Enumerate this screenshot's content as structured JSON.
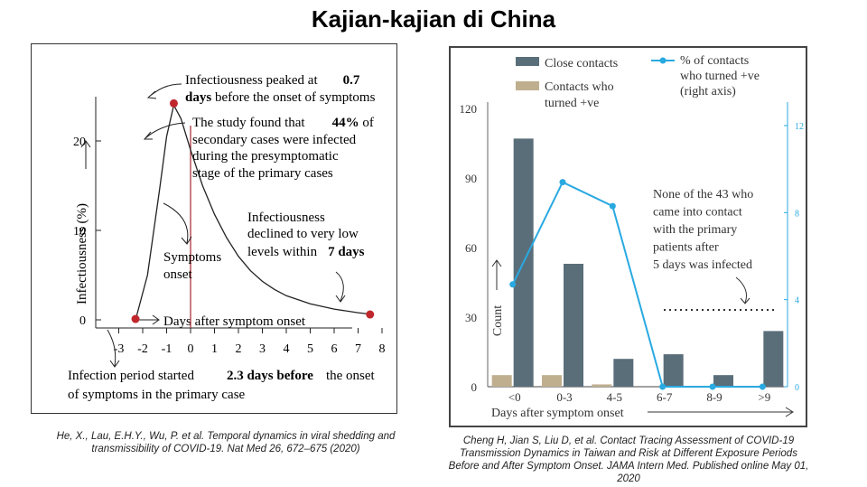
{
  "page_title": "Kajian-kajian di China",
  "left_chart": {
    "ylabel": "Infectiousness (%)",
    "xlabel": "Days after symptom onset",
    "symptoms_onset_label": [
      "Symptoms",
      "onset"
    ],
    "annotation_peak": {
      "line1": "Infectiousness peaked at",
      "bold1": "0.7",
      "bold2": "days",
      "line2": "before the onset of symptoms"
    },
    "annotation_study": {
      "line1": "The study found that",
      "bold1": "44%",
      "bold1_suffix": "of",
      "line2": "secondary cases were infected",
      "line3": "during the presymptomatic",
      "line4": "stage of the primary cases"
    },
    "annotation_decline": {
      "line1": "Infectiousness",
      "line2": "declined to very low",
      "line3": "levels within",
      "bold1": "7 days"
    },
    "annotation_start": {
      "line1": "Infection period started",
      "bold1": "2.3 days before",
      "line1_suffix": "the onset",
      "line2": "of symptoms in the primary case"
    },
    "citation": "He, X., Lau, E.H.Y., Wu, P. et al. Temporal dynamics in viral shedding and transmissibility of COVID-19. Nat Med 26, 672–675 (2020)"
  },
  "right_chart": {
    "legend": {
      "bar1": "Close contacts",
      "bar2_line1": "Contacts who",
      "bar2_line2": "turned +ve",
      "line_1": "% of contacts",
      "line_2": "who turned +ve",
      "line_3": "(right axis)"
    },
    "ylabel": "Count",
    "xlabel": "Days after symptom onset",
    "annotation": [
      "None of the 43 who",
      "came into contact",
      "with the primary",
      "patients after",
      "5 days was infected"
    ],
    "citation": "Cheng H, Jian S, Liu D, et al. Contact Tracing Assessment of COVID-19 Transmission Dynamics in Taiwan and Risk at Different Exposure Periods Before and After Symptom Onset. JAMA Intern Med. Published online May 01, 2020"
  },
  "colors": {
    "curve": "#222222",
    "marker": "#c0272d",
    "onset_line": "#a8242a",
    "bar_close": "#5a6e7a",
    "bar_positive": "#bfaf8f",
    "pct_line": "#29a9e1"
  },
  "chart_data": [
    {
      "type": "line",
      "xlabel": "Days after symptom onset",
      "ylabel": "Infectiousness (%)",
      "xlim": [
        -3.2,
        8.2
      ],
      "ylim": [
        0,
        25
      ],
      "xticks": [
        -3,
        -2,
        -1,
        0,
        1,
        2,
        3,
        4,
        5,
        6,
        7,
        8
      ],
      "yticks": [
        0,
        10,
        20
      ],
      "series": [
        {
          "x": [
            -2.3,
            -1.8,
            -1.3,
            -1.0,
            -0.7,
            -0.4,
            0,
            0.5,
            1,
            1.5,
            2,
            2.5,
            3,
            3.5,
            4,
            5,
            6,
            7,
            7.5
          ],
          "y": [
            0,
            5,
            14.5,
            20.5,
            24,
            22.5,
            19,
            15,
            11.8,
            9.2,
            7.1,
            5.5,
            4.3,
            3.4,
            2.7,
            1.8,
            1.2,
            0.8,
            0.65
          ]
        }
      ],
      "points": [
        {
          "x": -2.3,
          "y": 0.1
        },
        {
          "x": -0.7,
          "y": 24.2
        },
        {
          "x": 7.5,
          "y": 0.6
        }
      ],
      "vline_x": 0
    },
    {
      "type": "bar",
      "categories": [
        "<0",
        "0-3",
        "4-5",
        "6-7",
        "8-9",
        ">9"
      ],
      "ylabel": "Count",
      "xlabel": "Days after symptom onset",
      "ylim": [
        0,
        120
      ],
      "yticks": [
        0,
        30,
        60,
        90,
        120
      ],
      "y2lim": [
        0,
        13
      ],
      "y2ticks": [
        0,
        4,
        8,
        12
      ],
      "series": [
        {
          "name": "Close contacts",
          "values": [
            107,
            53,
            12,
            14,
            5,
            24
          ]
        },
        {
          "name": "Contacts who turned +ve",
          "values": [
            5,
            5,
            1,
            0,
            0,
            0
          ]
        },
        {
          "name": "% of contacts who turned +ve (right axis)",
          "axis": "right",
          "values": [
            4.7,
            9.4,
            8.3,
            0,
            0,
            0
          ]
        }
      ]
    }
  ]
}
